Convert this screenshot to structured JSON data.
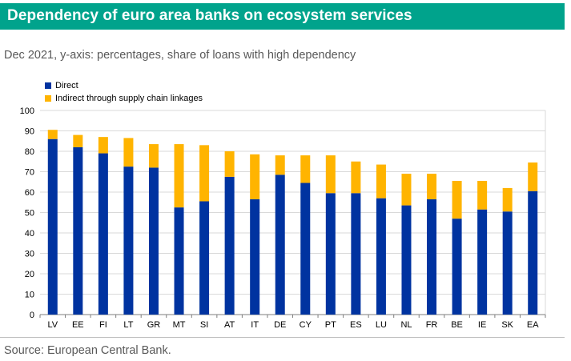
{
  "title": "Dependency of euro area banks on ecosystem services",
  "subtitle": "Dec 2021, y-axis: percentages, share of loans with high dependency",
  "source": "Source: European Central Bank.",
  "colors": {
    "title_bg": "#00a38c",
    "direct": "#0033a0",
    "indirect": "#ffb400",
    "grid": "#d9d9d9",
    "axis": "#7f7f7f"
  },
  "chart_data": {
    "type": "bar",
    "stacked": true,
    "categories": [
      "LV",
      "EE",
      "FI",
      "LT",
      "GR",
      "MT",
      "SI",
      "AT",
      "IT",
      "DE",
      "CY",
      "PT",
      "ES",
      "LU",
      "NL",
      "FR",
      "BE",
      "IE",
      "SK",
      "EA"
    ],
    "series": [
      {
        "name": "Direct",
        "values": [
          86,
          82,
          79,
          72.5,
          72,
          52.5,
          55.5,
          67.5,
          56.5,
          68.5,
          64.5,
          59.5,
          59.5,
          57,
          53.5,
          56.5,
          47,
          51.5,
          50.5,
          60.5
        ]
      },
      {
        "name": "Indirect through supply chain linkages",
        "values": [
          4.5,
          6,
          8,
          14,
          11.5,
          31,
          27.5,
          12.5,
          22,
          9.5,
          13.5,
          18.5,
          15.5,
          16.5,
          15.5,
          12.5,
          18.5,
          14,
          11.5,
          14
        ]
      }
    ],
    "ylim": [
      0,
      100
    ],
    "yticks": [
      0,
      10,
      20,
      30,
      40,
      50,
      60,
      70,
      80,
      90,
      100
    ],
    "xlabel": "",
    "ylabel": "",
    "grid": true,
    "legend": "top-left"
  }
}
